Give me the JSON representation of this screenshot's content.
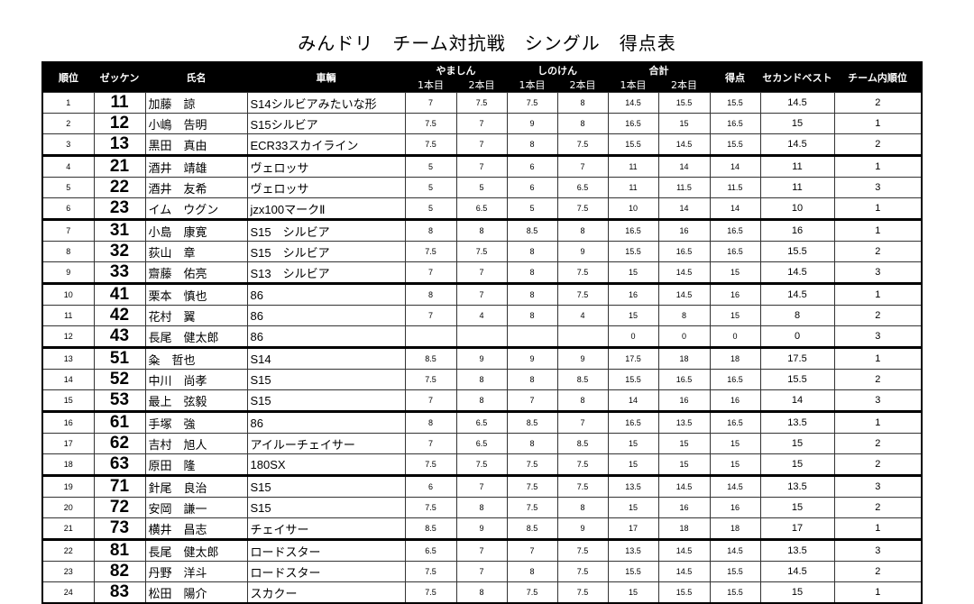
{
  "title": "みんドリ　チーム対抗戦　シングル　得点表",
  "headers": {
    "rank": "順位",
    "zekken": "ゼッケン",
    "name": "氏名",
    "car": "車輌",
    "yamashin": "やましん",
    "shinoken": "しのけん",
    "total": "合計",
    "run1": "1本目",
    "run2": "2本目",
    "score": "得点",
    "second_best": "セカンドベスト",
    "team_rank": "チーム内順位"
  },
  "rows": [
    {
      "rank": "1",
      "zekken": "11",
      "name": "加藤　諒",
      "car": "S14シルビアみたいな形",
      "y1": "7",
      "y2": "7.5",
      "s1": "7.5",
      "s2": "8",
      "t1": "14.5",
      "t2": "15.5",
      "score": "15.5",
      "second": "14.5",
      "team": "2"
    },
    {
      "rank": "2",
      "zekken": "12",
      "name": "小嶋　告明",
      "car": "S15シルビア",
      "y1": "7.5",
      "y2": "7",
      "s1": "9",
      "s2": "8",
      "t1": "16.5",
      "t2": "15",
      "score": "16.5",
      "second": "15",
      "team": "1"
    },
    {
      "rank": "3",
      "zekken": "13",
      "name": "黒田　真由",
      "car": "ECR33スカイライン",
      "y1": "7.5",
      "y2": "7",
      "s1": "8",
      "s2": "7.5",
      "t1": "15.5",
      "t2": "14.5",
      "score": "15.5",
      "second": "14.5",
      "team": "2"
    },
    {
      "rank": "4",
      "zekken": "21",
      "name": "酒井　靖雄",
      "car": "ヴェロッサ",
      "y1": "5",
      "y2": "7",
      "s1": "6",
      "s2": "7",
      "t1": "11",
      "t2": "14",
      "score": "14",
      "second": "11",
      "team": "1"
    },
    {
      "rank": "5",
      "zekken": "22",
      "name": "酒井　友希",
      "car": "ヴェロッサ",
      "y1": "5",
      "y2": "5",
      "s1": "6",
      "s2": "6.5",
      "t1": "11",
      "t2": "11.5",
      "score": "11.5",
      "second": "11",
      "team": "3"
    },
    {
      "rank": "6",
      "zekken": "23",
      "name": "イム　ウグン",
      "car": "jzx100マークⅡ",
      "y1": "5",
      "y2": "6.5",
      "s1": "5",
      "s2": "7.5",
      "t1": "10",
      "t2": "14",
      "score": "14",
      "second": "10",
      "team": "1"
    },
    {
      "rank": "7",
      "zekken": "31",
      "name": "小島　康寛",
      "car": "S15　シルビア",
      "y1": "8",
      "y2": "8",
      "s1": "8.5",
      "s2": "8",
      "t1": "16.5",
      "t2": "16",
      "score": "16.5",
      "second": "16",
      "team": "1"
    },
    {
      "rank": "8",
      "zekken": "32",
      "name": "荻山　章",
      "car": "S15　シルビア",
      "y1": "7.5",
      "y2": "7.5",
      "s1": "8",
      "s2": "9",
      "t1": "15.5",
      "t2": "16.5",
      "score": "16.5",
      "second": "15.5",
      "team": "2"
    },
    {
      "rank": "9",
      "zekken": "33",
      "name": "齋藤　佑亮",
      "car": "S13　シルビア",
      "y1": "7",
      "y2": "7",
      "s1": "8",
      "s2": "7.5",
      "t1": "15",
      "t2": "14.5",
      "score": "15",
      "second": "14.5",
      "team": "3"
    },
    {
      "rank": "10",
      "zekken": "41",
      "name": "栗本　慎也",
      "car": "86",
      "y1": "8",
      "y2": "7",
      "s1": "8",
      "s2": "7.5",
      "t1": "16",
      "t2": "14.5",
      "score": "16",
      "second": "14.5",
      "team": "1"
    },
    {
      "rank": "11",
      "zekken": "42",
      "name": "花村　翼",
      "car": "86",
      "y1": "7",
      "y2": "4",
      "s1": "8",
      "s2": "4",
      "t1": "15",
      "t2": "8",
      "score": "15",
      "second": "8",
      "team": "2"
    },
    {
      "rank": "12",
      "zekken": "43",
      "name": "長尾　健太郎",
      "car": "86",
      "y1": "",
      "y2": "",
      "s1": "",
      "s2": "",
      "t1": "0",
      "t2": "0",
      "score": "0",
      "second": "0",
      "team": "3"
    },
    {
      "rank": "13",
      "zekken": "51",
      "name": "粂　哲也",
      "car": "S14",
      "y1": "8.5",
      "y2": "9",
      "s1": "9",
      "s2": "9",
      "t1": "17.5",
      "t2": "18",
      "score": "18",
      "second": "17.5",
      "team": "1"
    },
    {
      "rank": "14",
      "zekken": "52",
      "name": "中川　尚孝",
      "car": "S15",
      "y1": "7.5",
      "y2": "8",
      "s1": "8",
      "s2": "8.5",
      "t1": "15.5",
      "t2": "16.5",
      "score": "16.5",
      "second": "15.5",
      "team": "2"
    },
    {
      "rank": "15",
      "zekken": "53",
      "name": "最上　弦毅",
      "car": "S15",
      "y1": "7",
      "y2": "8",
      "s1": "7",
      "s2": "8",
      "t1": "14",
      "t2": "16",
      "score": "16",
      "second": "14",
      "team": "3"
    },
    {
      "rank": "16",
      "zekken": "61",
      "name": "手塚　強",
      "car": "86",
      "y1": "8",
      "y2": "6.5",
      "s1": "8.5",
      "s2": "7",
      "t1": "16.5",
      "t2": "13.5",
      "score": "16.5",
      "second": "13.5",
      "team": "1"
    },
    {
      "rank": "17",
      "zekken": "62",
      "name": "吉村　旭人",
      "car": "アイルーチェイサー",
      "y1": "7",
      "y2": "6.5",
      "s1": "8",
      "s2": "8.5",
      "t1": "15",
      "t2": "15",
      "score": "15",
      "second": "15",
      "team": "2"
    },
    {
      "rank": "18",
      "zekken": "63",
      "name": "原田　隆",
      "car": "180SX",
      "y1": "7.5",
      "y2": "7.5",
      "s1": "7.5",
      "s2": "7.5",
      "t1": "15",
      "t2": "15",
      "score": "15",
      "second": "15",
      "team": "2"
    },
    {
      "rank": "19",
      "zekken": "71",
      "name": "針尾　良治",
      "car": "S15",
      "y1": "6",
      "y2": "7",
      "s1": "7.5",
      "s2": "7.5",
      "t1": "13.5",
      "t2": "14.5",
      "score": "14.5",
      "second": "13.5",
      "team": "3"
    },
    {
      "rank": "20",
      "zekken": "72",
      "name": "安岡　謙一",
      "car": "S15",
      "y1": "7.5",
      "y2": "8",
      "s1": "7.5",
      "s2": "8",
      "t1": "15",
      "t2": "16",
      "score": "16",
      "second": "15",
      "team": "2"
    },
    {
      "rank": "21",
      "zekken": "73",
      "name": "横井　昌志",
      "car": "チェイサー",
      "y1": "8.5",
      "y2": "9",
      "s1": "8.5",
      "s2": "9",
      "t1": "17",
      "t2": "18",
      "score": "18",
      "second": "17",
      "team": "1"
    },
    {
      "rank": "22",
      "zekken": "81",
      "name": "長尾　健太郎",
      "car": "ロードスター",
      "y1": "6.5",
      "y2": "7",
      "s1": "7",
      "s2": "7.5",
      "t1": "13.5",
      "t2": "14.5",
      "score": "14.5",
      "second": "13.5",
      "team": "3"
    },
    {
      "rank": "23",
      "zekken": "82",
      "name": "丹野　洋斗",
      "car": "ロードスター",
      "y1": "7.5",
      "y2": "7",
      "s1": "8",
      "s2": "7.5",
      "t1": "15.5",
      "t2": "14.5",
      "score": "15.5",
      "second": "14.5",
      "team": "2"
    },
    {
      "rank": "24",
      "zekken": "83",
      "name": "松田　陽介",
      "car": "スカクー",
      "y1": "7.5",
      "y2": "8",
      "s1": "7.5",
      "s2": "7.5",
      "t1": "15",
      "t2": "15.5",
      "score": "15.5",
      "second": "15",
      "team": "1"
    }
  ]
}
